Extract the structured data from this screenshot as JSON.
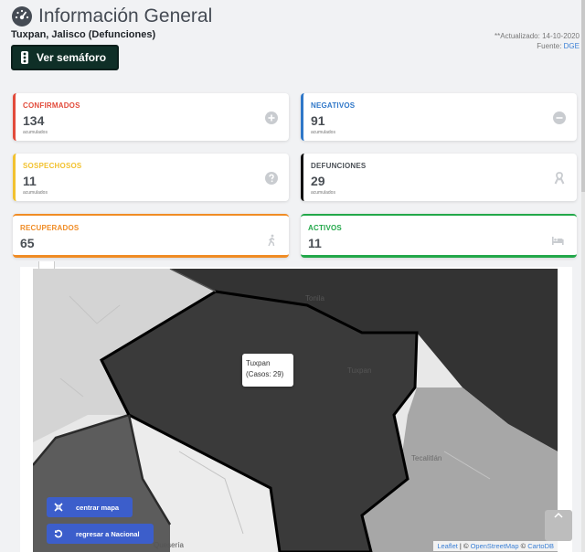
{
  "header": {
    "title": "Información General",
    "subtitle": "Tuxpan, Jalisco (Defunciones)",
    "updated": "**Actualizado: 14-10-2020",
    "source_prefix": "Fuente: ",
    "source_link": "DGE"
  },
  "semaforo_button": "Ver semáforo",
  "cards": {
    "confirmados": {
      "label": "CONFIRMADOS",
      "value": "134",
      "caption": "acumulados",
      "color": "#e24b3b"
    },
    "negativos": {
      "label": "NEGATIVOS",
      "value": "91",
      "caption": "acumulados",
      "color": "#2f77c8"
    },
    "sospechosos": {
      "label": "SOSPECHOSOS",
      "value": "11",
      "caption": "acumulados",
      "color": "#f2c230"
    },
    "defunciones": {
      "label": "DEFUNCIONES",
      "value": "29",
      "caption": "acumulados",
      "color": "#111111"
    },
    "recuperados": {
      "label": "RECUPERADOS",
      "value": "65",
      "color": "#f08c25"
    },
    "activos": {
      "label": "ACTIVOS",
      "value": "11",
      "color": "#23a84a"
    }
  },
  "map": {
    "tooltip_name": "Tuxpan",
    "tooltip_cases": "(Casos: 29)",
    "place_labels": [
      "Tonila",
      "Tuxpan",
      "Tecalitlán",
      "Quesería"
    ],
    "center_button": "centrar mapa",
    "national_button": "regresar a Nacional",
    "attribution": {
      "leaflet": "Leaflet",
      "sep1": " | © ",
      "osm": "OpenStreetMap",
      "sep2": " © ",
      "carto": "CartoDB"
    }
  }
}
